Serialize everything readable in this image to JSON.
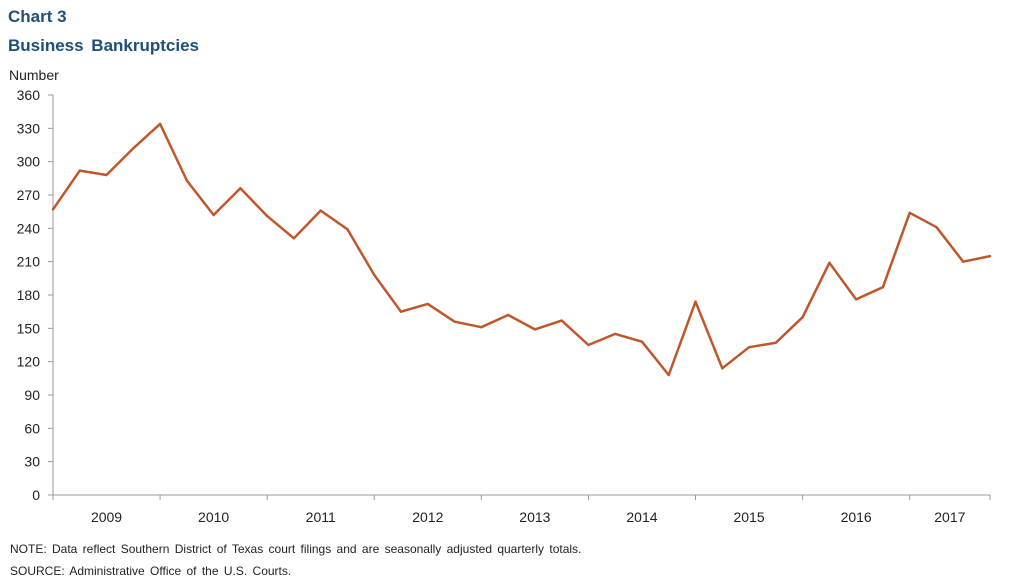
{
  "chart_data": {
    "type": "line",
    "title": "Chart 3",
    "subtitle": "Business  Bankruptcies",
    "ylabel": "Number",
    "xlabel": "",
    "ylim": [
      0,
      360
    ],
    "yticks": [
      0,
      30,
      60,
      90,
      120,
      150,
      180,
      210,
      240,
      270,
      300,
      330,
      360
    ],
    "xlim": [
      2009.0,
      2017.75
    ],
    "x_tick_labels": [
      "2009",
      "2010",
      "2011",
      "2012",
      "2013",
      "2014",
      "2015",
      "2016",
      "2017"
    ],
    "grid": false,
    "series": [
      {
        "color": "#c0572b",
        "x": [
          2009.0,
          2009.25,
          2009.5,
          2009.75,
          2010.0,
          2010.25,
          2010.5,
          2010.75,
          2011.0,
          2011.25,
          2011.5,
          2011.75,
          2012.0,
          2012.25,
          2012.5,
          2012.75,
          2013.0,
          2013.25,
          2013.5,
          2013.75,
          2014.0,
          2014.25,
          2014.5,
          2014.75,
          2015.0,
          2015.25,
          2015.5,
          2015.75,
          2016.0,
          2016.25,
          2016.5,
          2016.75,
          2017.0,
          2017.25,
          2017.5,
          2017.75
        ],
        "values": [
          257,
          292,
          288,
          312,
          334,
          283,
          252,
          276,
          251,
          231,
          256,
          239,
          198,
          165,
          172,
          156,
          151,
          162,
          149,
          157,
          135,
          145,
          138,
          108,
          174,
          114,
          133,
          137,
          160,
          209,
          176,
          187,
          254,
          241,
          210,
          215
        ]
      }
    ]
  },
  "notes": {
    "note": "NOTE:  Data reflect Southern District of Texas court filings and are seasonally  adjusted quarterly totals.",
    "source": "SOURCE:  Administrative  Office of the U.S.  Courts."
  }
}
